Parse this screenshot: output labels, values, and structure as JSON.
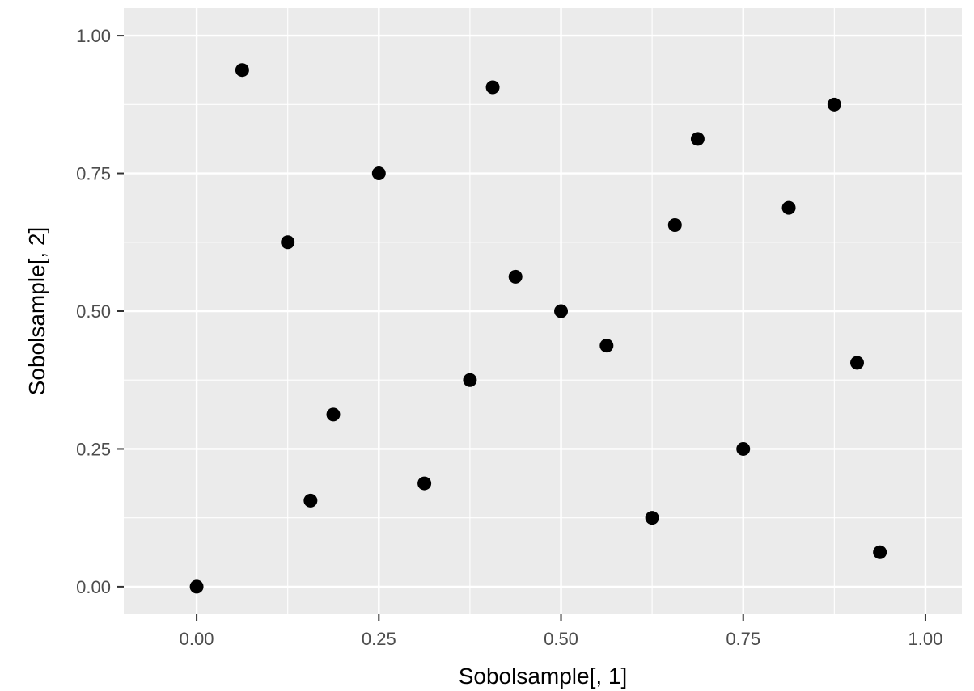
{
  "chart_data": {
    "type": "scatter",
    "title": "",
    "xlabel": "Sobolsample[, 1]",
    "ylabel": "Sobolsample[, 2]",
    "xlim": [
      -0.1,
      1.05
    ],
    "ylim": [
      -0.05,
      1.05
    ],
    "grid": true,
    "legend": "none",
    "point_color": "#000000",
    "panel_color": "#ebebeb",
    "x_ticks": [
      0,
      0.25,
      0.5,
      0.75,
      1.0
    ],
    "x_tick_labels": [
      "0.00",
      "0.25",
      "0.50",
      "0.75",
      "1.00"
    ],
    "y_ticks": [
      0,
      0.25,
      0.5,
      0.75,
      1.0
    ],
    "y_tick_labels": [
      "0.00",
      "0.25",
      "0.50",
      "0.75",
      "1.00"
    ],
    "points": [
      {
        "x": 0.0,
        "y": 0.0
      },
      {
        "x": 0.0625,
        "y": 0.9375
      },
      {
        "x": 0.125,
        "y": 0.625
      },
      {
        "x": 0.15625,
        "y": 0.15625
      },
      {
        "x": 0.1875,
        "y": 0.3125
      },
      {
        "x": 0.25,
        "y": 0.75
      },
      {
        "x": 0.3125,
        "y": 0.1875
      },
      {
        "x": 0.375,
        "y": 0.375
      },
      {
        "x": 0.40625,
        "y": 0.90625
      },
      {
        "x": 0.4375,
        "y": 0.5625
      },
      {
        "x": 0.5,
        "y": 0.5
      },
      {
        "x": 0.5625,
        "y": 0.4375
      },
      {
        "x": 0.625,
        "y": 0.125
      },
      {
        "x": 0.65625,
        "y": 0.65625
      },
      {
        "x": 0.6875,
        "y": 0.8125
      },
      {
        "x": 0.75,
        "y": 0.25
      },
      {
        "x": 0.8125,
        "y": 0.6875
      },
      {
        "x": 0.875,
        "y": 0.875
      },
      {
        "x": 0.90625,
        "y": 0.40625
      },
      {
        "x": 0.9375,
        "y": 0.0625
      }
    ]
  }
}
